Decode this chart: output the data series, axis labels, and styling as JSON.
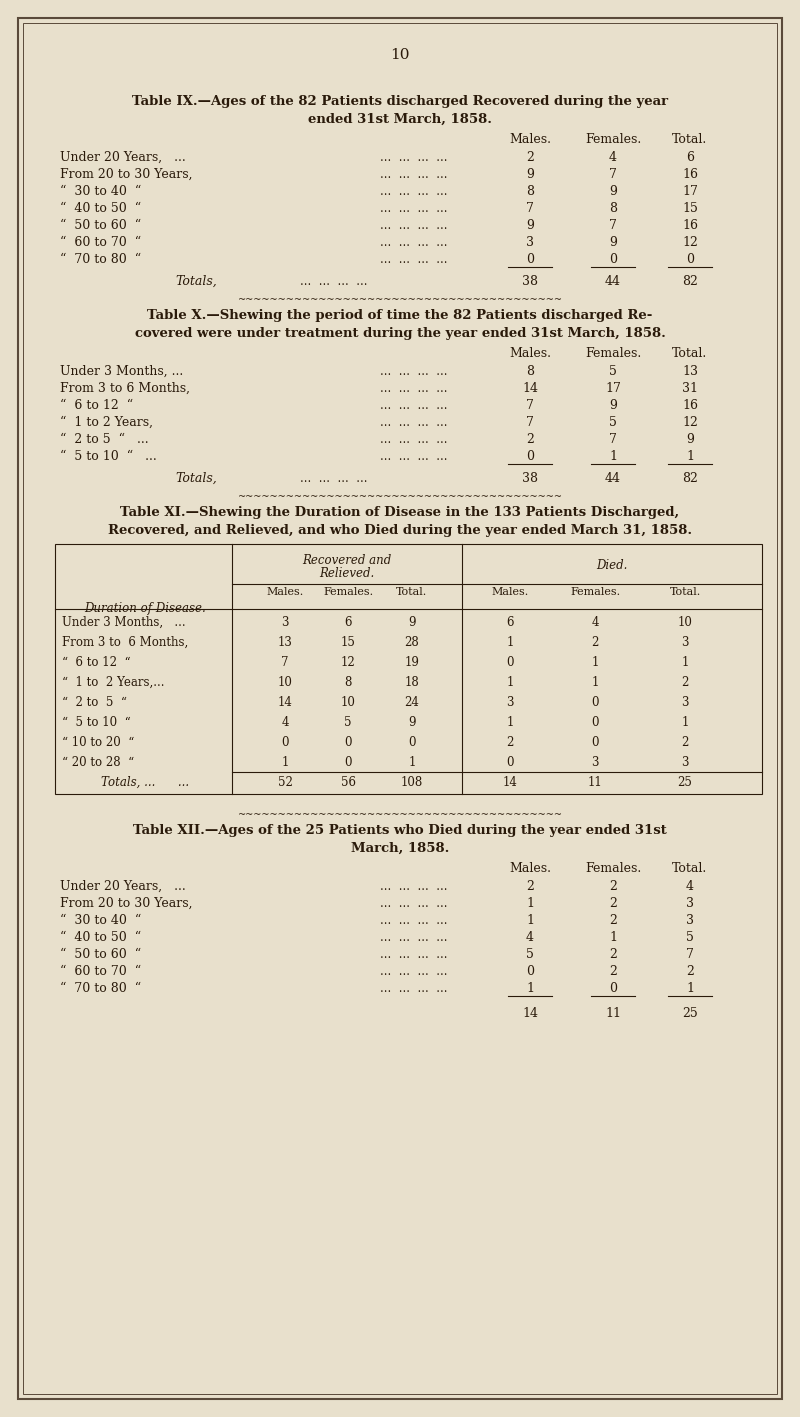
{
  "bg_color": "#e8e0cc",
  "text_color": "#2a1a0a",
  "page_number": "10",
  "page_border_color": "#5a4a3a",
  "table9": {
    "title_line1": "Table IX.—Ages of the 82 Patients discharged Recovered during the year",
    "title_line2": "ended 31st March, 1858.",
    "col_headers": [
      "Males.",
      "Females.",
      "Total."
    ],
    "row_labels": [
      "Under 20 Years,   ...",
      "From 20 to 30 Years,",
      "“  30 to 40  “",
      "“  40 to 50  “",
      "“  50 to 60  “",
      "“  60 to 70  “",
      "“  70 to 80  “"
    ],
    "vals": [
      [
        "2",
        "4",
        "6"
      ],
      [
        "9",
        "7",
        "16"
      ],
      [
        "8",
        "9",
        "17"
      ],
      [
        "7",
        "8",
        "15"
      ],
      [
        "9",
        "7",
        "16"
      ],
      [
        "3",
        "9",
        "12"
      ],
      [
        "0",
        "0",
        "0"
      ]
    ],
    "totals": [
      "38",
      "44",
      "82"
    ]
  },
  "table10": {
    "title_line1": "Table X.—Shewing the period of time the 82 Patients discharged Re-",
    "title_line2": "covered were under treatment during the year ended 31st March, 1858.",
    "col_headers": [
      "Males.",
      "Females.",
      "Total."
    ],
    "row_labels": [
      "Under 3 Months, ...",
      "From 3 to 6 Months,",
      "“  6 to 12  “",
      "“  1 to 2 Years,",
      "“  2 to 5  “   ...",
      "“  5 to 10  “   ..."
    ],
    "vals": [
      [
        "8",
        "5",
        "13"
      ],
      [
        "14",
        "17",
        "31"
      ],
      [
        "7",
        "9",
        "16"
      ],
      [
        "7",
        "5",
        "12"
      ],
      [
        "2",
        "7",
        "9"
      ],
      [
        "0",
        "1",
        "1"
      ]
    ],
    "totals": [
      "38",
      "44",
      "82"
    ]
  },
  "table11": {
    "title_line1": "Table XI.—Shewing the Duration of Disease in the 133 Patients Discharged,",
    "title_line2": "Recovered, and Relieved, and who Died during the year ended March 31, 1858.",
    "col1_header": "Duration of Disease.",
    "group1_header_line1": "Recovered and",
    "group1_header_line2": "Relieved.",
    "group2_header": "Died.",
    "sub_headers": [
      "Males.",
      "Females.",
      "Total.",
      "Males.",
      "Females.",
      "Total."
    ],
    "row_labels": [
      "Under 3 Months,   ...",
      "From 3 to  6 Months,",
      "“  6 to 12  “",
      "“  1 to  2 Years,...",
      "“  2 to  5  “",
      "“  5 to 10  “",
      "“ 10 to 20  “",
      "“ 20 to 28  “"
    ],
    "vals": [
      [
        "3",
        "6",
        "9",
        "6",
        "4",
        "10"
      ],
      [
        "13",
        "15",
        "28",
        "1",
        "2",
        "3"
      ],
      [
        "7",
        "12",
        "19",
        "0",
        "1",
        "1"
      ],
      [
        "10",
        "8",
        "18",
        "1",
        "1",
        "2"
      ],
      [
        "14",
        "10",
        "24",
        "3",
        "0",
        "3"
      ],
      [
        "4",
        "5",
        "9",
        "1",
        "0",
        "1"
      ],
      [
        "0",
        "0",
        "0",
        "2",
        "0",
        "2"
      ],
      [
        "1",
        "0",
        "1",
        "0",
        "3",
        "3"
      ]
    ],
    "totals": [
      "52",
      "56",
      "108",
      "14",
      "11",
      "25"
    ]
  },
  "table12": {
    "title_line1": "Table XII.—Ages of the 25 Patients who Died during the year ended 31st",
    "title_line2": "March, 1858.",
    "col_headers": [
      "Males.",
      "Females.",
      "Total."
    ],
    "row_labels": [
      "Under 20 Years,   ...",
      "From 20 to 30 Years,",
      "“  30 to 40  “",
      "“  40 to 50  “",
      "“  50 to 60  “",
      "“  60 to 70  “",
      "“  70 to 80  “"
    ],
    "vals": [
      [
        "2",
        "2",
        "4"
      ],
      [
        "1",
        "2",
        "3"
      ],
      [
        "1",
        "2",
        "3"
      ],
      [
        "4",
        "1",
        "5"
      ],
      [
        "5",
        "2",
        "7"
      ],
      [
        "0",
        "2",
        "2"
      ],
      [
        "1",
        "0",
        "1"
      ]
    ],
    "totals": [
      "14",
      "11",
      "25"
    ]
  }
}
